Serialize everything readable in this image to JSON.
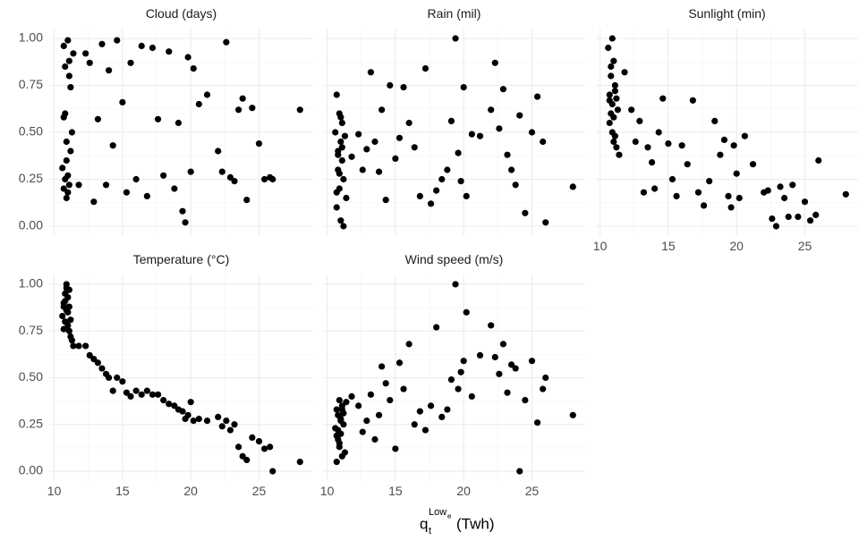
{
  "chart_data": {
    "type": "scatter",
    "x_label": {
      "base": "q",
      "sub": "t",
      "sup": "Low",
      "sup_sub": "e",
      "unit": "(Twh)"
    },
    "color": "#000000",
    "grid": true,
    "xlim": [
      9.7,
      28.9
    ],
    "ylim": [
      -0.05,
      1.05
    ],
    "xticks": [
      10,
      15,
      20,
      25
    ],
    "yticks": [
      {
        "value": 0,
        "label": "0.00"
      },
      {
        "value": 0.25,
        "label": "0.25"
      },
      {
        "value": 0.5,
        "label": "0.50"
      },
      {
        "value": 0.75,
        "label": "0.75"
      },
      {
        "value": 1,
        "label": "1.00"
      }
    ],
    "x": [
      10.6,
      10.7,
      10.7,
      10.8,
      10.8,
      10.9,
      10.9,
      11.0,
      11.0,
      11.1,
      11.1,
      11.2,
      11.2,
      11.3,
      11.4,
      10.8,
      11.0,
      10.9,
      11.1,
      10.7,
      11.8,
      12.3,
      12.6,
      12.9,
      13.2,
      13.5,
      13.8,
      14.0,
      14.3,
      14.6,
      15.0,
      15.3,
      15.6,
      16.0,
      16.4,
      16.8,
      17.2,
      17.6,
      18.0,
      18.4,
      18.8,
      19.1,
      19.4,
      19.6,
      19.8,
      20.0,
      20.2,
      20.6,
      21.2,
      22.0,
      22.3,
      22.6,
      22.9,
      23.2,
      23.5,
      23.8,
      24.1,
      24.5,
      25.0,
      25.4,
      25.8,
      26.0,
      28.0
    ],
    "facets": [
      {
        "title": "Cloud (days)",
        "values": [
          0.31,
          0.96,
          0.2,
          0.85,
          0.6,
          0.45,
          0.15,
          0.99,
          0.27,
          0.88,
          0.22,
          0.74,
          0.4,
          0.5,
          0.92,
          0.25,
          0.18,
          0.35,
          0.8,
          0.58,
          0.22,
          0.92,
          0.87,
          0.13,
          0.57,
          0.97,
          0.22,
          0.83,
          0.43,
          0.99,
          0.66,
          0.18,
          0.87,
          0.25,
          0.96,
          0.16,
          0.95,
          0.57,
          0.27,
          0.93,
          0.2,
          0.55,
          0.08,
          0.02,
          0.9,
          0.29,
          0.84,
          0.65,
          0.7,
          0.4,
          0.29,
          0.98,
          0.26,
          0.24,
          0.62,
          0.68,
          0.14,
          0.63,
          0.44,
          0.25,
          0.26,
          0.25,
          0.62
        ]
      },
      {
        "title": "Rain (mil)",
        "values": [
          0.5,
          0.7,
          0.1,
          0.4,
          0.3,
          0.6,
          0.2,
          0.03,
          0.45,
          0.35,
          0.55,
          0.25,
          0.0,
          0.48,
          0.15,
          0.38,
          0.58,
          0.28,
          0.42,
          0.18,
          0.37,
          0.49,
          0.3,
          0.41,
          0.82,
          0.45,
          0.29,
          0.62,
          0.14,
          0.75,
          0.36,
          0.47,
          0.74,
          0.55,
          0.42,
          0.16,
          0.84,
          0.12,
          0.19,
          0.25,
          0.3,
          0.56,
          1.0,
          0.39,
          0.24,
          0.74,
          0.16,
          0.49,
          0.48,
          0.62,
          0.87,
          0.52,
          0.73,
          0.38,
          0.3,
          0.22,
          0.59,
          0.07,
          0.5,
          0.69,
          0.45,
          0.02,
          0.21
        ]
      },
      {
        "title": "Sunlight (min)",
        "values": [
          0.95,
          0.7,
          0.55,
          0.6,
          0.8,
          0.65,
          0.5,
          0.88,
          0.45,
          0.75,
          0.72,
          0.42,
          0.68,
          0.62,
          0.38,
          0.85,
          0.58,
          1.0,
          0.48,
          0.67,
          0.82,
          0.62,
          0.45,
          0.56,
          0.18,
          0.42,
          0.34,
          0.2,
          0.5,
          0.68,
          0.44,
          0.25,
          0.16,
          0.43,
          0.33,
          0.67,
          0.18,
          0.11,
          0.24,
          0.56,
          0.38,
          0.46,
          0.16,
          0.1,
          0.43,
          0.28,
          0.15,
          0.48,
          0.33,
          0.18,
          0.19,
          0.04,
          0.0,
          0.21,
          0.15,
          0.05,
          0.22,
          0.05,
          0.13,
          0.03,
          0.06,
          0.35,
          0.17
        ]
      },
      {
        "title": "Temperature (°C)",
        "values": [
          0.83,
          0.76,
          0.9,
          0.95,
          0.8,
          1.0,
          0.86,
          0.93,
          0.78,
          0.97,
          0.88,
          0.72,
          0.81,
          0.7,
          0.67,
          0.91,
          0.85,
          0.98,
          0.75,
          0.88,
          0.67,
          0.67,
          0.62,
          0.6,
          0.58,
          0.55,
          0.52,
          0.5,
          0.43,
          0.5,
          0.48,
          0.42,
          0.4,
          0.43,
          0.41,
          0.43,
          0.41,
          0.41,
          0.38,
          0.36,
          0.35,
          0.33,
          0.32,
          0.28,
          0.3,
          0.37,
          0.27,
          0.28,
          0.27,
          0.29,
          0.24,
          0.27,
          0.22,
          0.25,
          0.13,
          0.08,
          0.06,
          0.18,
          0.16,
          0.12,
          0.13,
          0.0,
          0.05
        ]
      },
      {
        "title": "Wind speed (m/s)",
        "values": [
          0.23,
          0.33,
          0.05,
          0.17,
          0.3,
          0.38,
          0.13,
          0.27,
          0.2,
          0.35,
          0.08,
          0.25,
          0.31,
          0.1,
          0.37,
          0.22,
          0.28,
          0.15,
          0.33,
          0.19,
          0.4,
          0.35,
          0.21,
          0.27,
          0.41,
          0.17,
          0.3,
          0.56,
          0.47,
          0.38,
          0.12,
          0.58,
          0.44,
          0.68,
          0.25,
          0.32,
          0.22,
          0.35,
          0.77,
          0.29,
          0.33,
          0.49,
          1.0,
          0.44,
          0.53,
          0.59,
          0.85,
          0.4,
          0.62,
          0.78,
          0.61,
          0.52,
          0.68,
          0.42,
          0.57,
          0.55,
          0.0,
          0.38,
          0.59,
          0.26,
          0.44,
          0.5,
          0.3
        ]
      }
    ]
  }
}
